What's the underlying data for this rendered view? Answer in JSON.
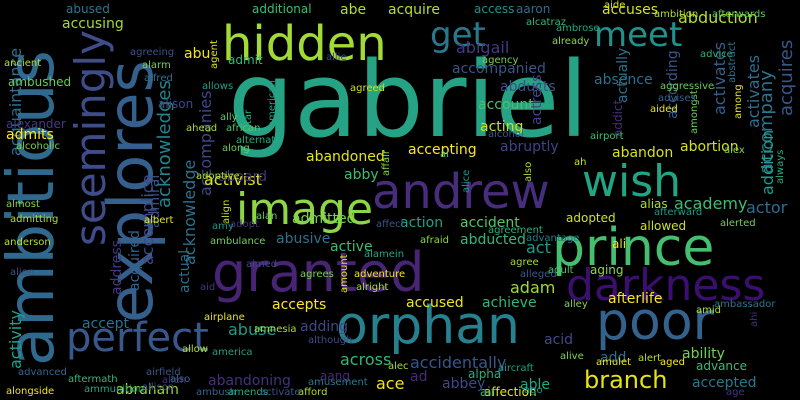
{
  "cloud": {
    "words": [
      {
        "text": "gabriel",
        "color": "#26a384"
      },
      {
        "text": "ambitious",
        "color": "#30698e"
      },
      {
        "text": "explores",
        "color": "#35608d"
      },
      {
        "text": "hidden",
        "color": "#a2da37"
      },
      {
        "text": "andrew",
        "color": "#472d7b"
      },
      {
        "text": "prince",
        "color": "#44bf70"
      },
      {
        "text": "granted",
        "color": "#482475"
      },
      {
        "text": "image",
        "color": "#8ed645"
      },
      {
        "text": "orphan",
        "color": "#27808e"
      },
      {
        "text": "poor",
        "color": "#33638d"
      },
      {
        "text": "darkness",
        "color": "#3b0f70"
      },
      {
        "text": "wish",
        "color": "#21a685"
      },
      {
        "text": "perfect",
        "color": "#38588c"
      },
      {
        "text": "seemingly",
        "color": "#3e4c8a"
      },
      {
        "text": "meet",
        "color": "#20928c"
      },
      {
        "text": "get",
        "color": "#2a788e"
      },
      {
        "text": "branch",
        "color": "#e5e419"
      },
      {
        "text": "abduction",
        "color": "#b5de2b"
      },
      {
        "text": "acquires",
        "color": "#39568c"
      },
      {
        "text": "accompany",
        "color": "#2c728e"
      },
      {
        "text": "activates",
        "color": "#2e6e8e"
      },
      {
        "text": "addition",
        "color": "#1f9e89"
      },
      {
        "text": "acknowledges",
        "color": "#25838e"
      },
      {
        "text": "accompanies",
        "color": "#3f4788"
      },
      {
        "text": "acquaintance",
        "color": "#2e6f8e"
      },
      {
        "text": "accomplice",
        "color": "#3f4889"
      },
      {
        "text": "acknowledge",
        "color": "#2d718e"
      },
      {
        "text": "activity",
        "color": "#1fa188"
      },
      {
        "text": "address",
        "color": "#453882"
      },
      {
        "text": "adding",
        "color": "#404688"
      },
      {
        "text": "accepted",
        "color": "#2a778e"
      },
      {
        "text": "activist",
        "color": "#dde318"
      },
      {
        "text": "admitted",
        "color": "#7ad151"
      },
      {
        "text": "abandoned",
        "color": "#e5e419"
      },
      {
        "text": "accepting",
        "color": "#fde725"
      },
      {
        "text": "abandon",
        "color": "#d8e219"
      },
      {
        "text": "abortion",
        "color": "#d2e21b"
      },
      {
        "text": "academy",
        "color": "#3fbc73"
      },
      {
        "text": "actor",
        "color": "#2e6e8e"
      },
      {
        "text": "abruptly",
        "color": "#404387"
      },
      {
        "text": "acting",
        "color": "#cae11f"
      },
      {
        "text": "account",
        "color": "#48c16e"
      },
      {
        "text": "abducts",
        "color": "#3b518b"
      },
      {
        "text": "actress",
        "color": "#404588"
      },
      {
        "text": "actually",
        "color": "#2d708e"
      },
      {
        "text": "activates",
        "color": "#355f8d"
      },
      {
        "text": "abigail",
        "color": "#443983"
      },
      {
        "text": "accompanied",
        "color": "#39558c"
      },
      {
        "text": "absence",
        "color": "#2e6e8e"
      },
      {
        "text": "according",
        "color": "#3a548c"
      },
      {
        "text": "action",
        "color": "#1fa188"
      },
      {
        "text": "accident",
        "color": "#56c667"
      },
      {
        "text": "abducted",
        "color": "#35b779"
      },
      {
        "text": "abusive",
        "color": "#2d718e"
      },
      {
        "text": "active",
        "color": "#3dbc74"
      },
      {
        "text": "acquired",
        "color": "#33638d"
      },
      {
        "text": "actual",
        "color": "#2f6c8e"
      },
      {
        "text": "aboard",
        "color": "#46327e"
      },
      {
        "text": "admiral",
        "color": "#3a538b"
      },
      {
        "text": "accept",
        "color": "#2c728e"
      },
      {
        "text": "abuse",
        "color": "#1f9a8a"
      },
      {
        "text": "accepts",
        "color": "#fde725"
      },
      {
        "text": "accused",
        "color": "#efe51c"
      },
      {
        "text": "achieve",
        "color": "#32b67a"
      },
      {
        "text": "adam",
        "color": "#a2da37"
      },
      {
        "text": "act",
        "color": "#1e9b8a"
      },
      {
        "text": "across",
        "color": "#32b67a"
      },
      {
        "text": "accidentally",
        "color": "#39568c"
      },
      {
        "text": "acid",
        "color": "#3e4a89"
      },
      {
        "text": "add",
        "color": "#2c728e"
      },
      {
        "text": "ability",
        "color": "#74d055"
      },
      {
        "text": "abraham",
        "color": "#9bd93c"
      },
      {
        "text": "abandoning",
        "color": "#46307e"
      },
      {
        "text": "abbey",
        "color": "#3f4889"
      },
      {
        "text": "able",
        "color": "#22a785"
      },
      {
        "text": "ace",
        "color": "#f1e51d"
      },
      {
        "text": "ad",
        "color": "#482878"
      },
      {
        "text": "aang",
        "color": "#472a7a"
      },
      {
        "text": "abby",
        "color": "#3fbc73"
      },
      {
        "text": "abe",
        "color": "#b0dd2f"
      },
      {
        "text": "acquire",
        "color": "#b5de2b"
      },
      {
        "text": "access",
        "color": "#21908d"
      },
      {
        "text": "aaron",
        "color": "#2e6e8e"
      },
      {
        "text": "accuses",
        "color": "#d2e21b"
      },
      {
        "text": "accusing",
        "color": "#a0da39"
      },
      {
        "text": "abused",
        "color": "#2a788e"
      },
      {
        "text": "abu",
        "color": "#f1e51d"
      },
      {
        "text": "admit",
        "color": "#35b779"
      },
      {
        "text": "additional",
        "color": "#40bd72"
      },
      {
        "text": "admits",
        "color": "#fde725"
      },
      {
        "text": "addict",
        "color": "#472c7a"
      },
      {
        "text": "afterlife",
        "color": "#fde725"
      },
      {
        "text": "adopted",
        "color": "#d0e11c"
      },
      {
        "text": "alias",
        "color": "#addc30"
      },
      {
        "text": "allowed",
        "color": "#cde11d"
      },
      {
        "text": "afterward",
        "color": "#1e9b8a"
      },
      {
        "text": "ali",
        "color": "#f1e51d"
      },
      {
        "text": "agree",
        "color": "#a5db36"
      },
      {
        "text": "adult",
        "color": "#56c667"
      },
      {
        "text": "aging",
        "color": "#8ed645"
      },
      {
        "text": "alcoholic",
        "color": "#75d054"
      },
      {
        "text": "alive",
        "color": "#7fd34e"
      },
      {
        "text": "alert",
        "color": "#b5de2b"
      },
      {
        "text": "advance",
        "color": "#3aba76"
      },
      {
        "text": "aircraft",
        "color": "#1fa088"
      },
      {
        "text": "alpha",
        "color": "#29af7f"
      },
      {
        "text": "affection",
        "color": "#e7e419"
      },
      {
        "text": "ago",
        "color": "#1e9c89"
      },
      {
        "text": "air",
        "color": "#32b67a"
      },
      {
        "text": "agreed",
        "color": "#cde11d"
      },
      {
        "text": "alcohol",
        "color": "#365c8d"
      },
      {
        "text": "afraid",
        "color": "#8bd646"
      },
      {
        "text": "always",
        "color": "#26ad81"
      },
      {
        "text": "alex",
        "color": "#84d44b"
      },
      {
        "text": "aided",
        "color": "#e7e419"
      },
      {
        "text": "airport",
        "color": "#44bf70"
      },
      {
        "text": "also",
        "color": "#b0dd2f"
      },
      {
        "text": "ah",
        "color": "#cde11d"
      },
      {
        "text": "advantage",
        "color": "#2a788e"
      },
      {
        "text": "alcatraz",
        "color": "#37b878"
      },
      {
        "text": "ambition",
        "color": "#b0dd2f"
      },
      {
        "text": "afterwards",
        "color": "#5ec962"
      },
      {
        "text": "already",
        "color": "#8bd646"
      },
      {
        "text": "ambrose",
        "color": "#21a685"
      },
      {
        "text": "aide",
        "color": "#dde318"
      },
      {
        "text": "advice",
        "color": "#2ab07f"
      },
      {
        "text": "abstract",
        "color": "#2e6f8e"
      },
      {
        "text": "aggressive",
        "color": "#6ccd5a"
      },
      {
        "text": "amongst",
        "color": "#6ccd5a"
      },
      {
        "text": "among",
        "color": "#e5e419"
      },
      {
        "text": "advises",
        "color": "#32658e"
      },
      {
        "text": "agency",
        "color": "#7ad151"
      },
      {
        "text": "allie",
        "color": "#3e4a89"
      },
      {
        "text": "allows",
        "color": "#1fa188"
      },
      {
        "text": "alfred",
        "color": "#2c738e"
      },
      {
        "text": "agreeing",
        "color": "#3b528b"
      },
      {
        "text": "alarm",
        "color": "#7ad151"
      },
      {
        "text": "agent",
        "color": "#dde318"
      },
      {
        "text": "ambushed",
        "color": "#67cc5c"
      },
      {
        "text": "ancient",
        "color": "#b5de2b"
      },
      {
        "text": "alexander",
        "color": "#443a83"
      },
      {
        "text": "alison",
        "color": "#3e4989"
      },
      {
        "text": "ahead",
        "color": "#a5db36"
      },
      {
        "text": "ally",
        "color": "#5ec962"
      },
      {
        "text": "altar",
        "color": "#29af7f"
      },
      {
        "text": "american",
        "color": "#1fa188"
      },
      {
        "text": "african",
        "color": "#54c568"
      },
      {
        "text": "alternate",
        "color": "#26ad81"
      },
      {
        "text": "along",
        "color": "#6ccd5a"
      },
      {
        "text": "albert",
        "color": "#e2e418"
      },
      {
        "text": "adoptive",
        "color": "#a5db36"
      },
      {
        "text": "adopt",
        "color": "#472d7b"
      },
      {
        "text": "align",
        "color": "#c2df23"
      },
      {
        "text": "affair",
        "color": "#86d549"
      },
      {
        "text": "alice",
        "color": "#1f988b"
      },
      {
        "text": "alamein",
        "color": "#21a685"
      },
      {
        "text": "affect",
        "color": "#3b528b"
      },
      {
        "text": "agreement",
        "color": "#29af7f"
      },
      {
        "text": "almost",
        "color": "#84d44b"
      },
      {
        "text": "admitting",
        "color": "#b5de2b"
      },
      {
        "text": "anderson",
        "color": "#b5de2b"
      },
      {
        "text": "ambulance",
        "color": "#73d056"
      },
      {
        "text": "alan",
        "color": "#5ec962"
      },
      {
        "text": "amy",
        "color": "#20928c"
      },
      {
        "text": "amount",
        "color": "#e5e419"
      },
      {
        "text": "alerted",
        "color": "#75d054"
      },
      {
        "text": "alien",
        "color": "#3b528b"
      },
      {
        "text": "airplane",
        "color": "#e5e419"
      },
      {
        "text": "aid",
        "color": "#46337e"
      },
      {
        "text": "aimed",
        "color": "#3e4a89"
      },
      {
        "text": "agrees",
        "color": "#7ad151"
      },
      {
        "text": "adventure",
        "color": "#f1e51d"
      },
      {
        "text": "alleged",
        "color": "#38598c"
      },
      {
        "text": "alley",
        "color": "#7fd34e"
      },
      {
        "text": "ambassador",
        "color": "#2b748e"
      },
      {
        "text": "alright",
        "color": "#addc30"
      },
      {
        "text": "amnesia",
        "color": "#addc30"
      },
      {
        "text": "amid",
        "color": "#b0dd2f"
      },
      {
        "text": "alec",
        "color": "#a5db36"
      },
      {
        "text": "amulet",
        "color": "#f1e51d"
      },
      {
        "text": "aged",
        "color": "#fde725"
      },
      {
        "text": "allow",
        "color": "#b5de2b"
      },
      {
        "text": "america",
        "color": "#1f9e89"
      },
      {
        "text": "airfield",
        "color": "#3a548c"
      },
      {
        "text": "allen",
        "color": "#46307e"
      },
      {
        "text": "allison",
        "color": "#3d4e8a"
      },
      {
        "text": "advanced",
        "color": "#32658e"
      },
      {
        "text": "aftermath",
        "color": "#35b779"
      },
      {
        "text": "ammunition",
        "color": "#21a685"
      },
      {
        "text": "alongside",
        "color": "#f1e51d"
      },
      {
        "text": "ambush",
        "color": "#33638d"
      },
      {
        "text": "afford",
        "color": "#b0dd2f"
      },
      {
        "text": "amends",
        "color": "#26ad81"
      },
      {
        "text": "activate",
        "color": "#3a548c"
      },
      {
        "text": "amusement",
        "color": "#2a788e"
      },
      {
        "text": "al",
        "color": "#54c568"
      },
      {
        "text": "ahi",
        "color": "#46317e"
      },
      {
        "text": "age",
        "color": "#46317e"
      },
      {
        "text": "although",
        "color": "#3e4c8a"
      },
      {
        "text": "also",
        "color": "#2e6f8e"
      }
    ]
  }
}
